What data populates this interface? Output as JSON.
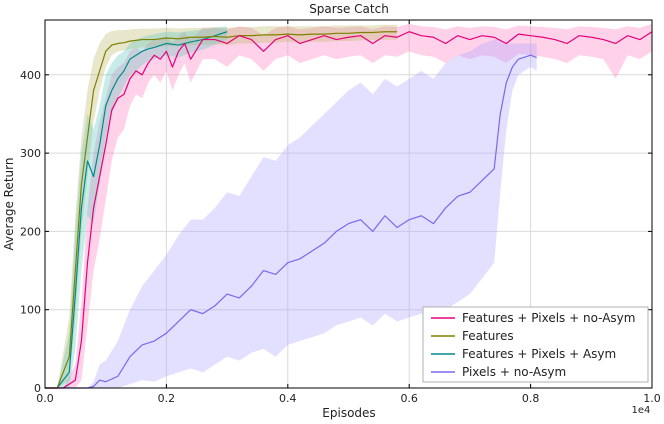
{
  "chart_data": {
    "type": "line",
    "title": "Sparse Catch",
    "xlabel": "Episodes",
    "ylabel": "Average Return",
    "x_multiplier_label": "1e4",
    "xlim": [
      0.0,
      1.0
    ],
    "ylim": [
      0,
      470
    ],
    "x_ticks": [
      0.0,
      0.2,
      0.4,
      0.6,
      0.8,
      1.0
    ],
    "x_tick_labels": [
      "0.0",
      "0.2",
      "0.4",
      "0.6",
      "0.8",
      "1.0"
    ],
    "y_ticks": [
      0,
      100,
      200,
      300,
      400
    ],
    "y_tick_labels": [
      "0",
      "100",
      "200",
      "300",
      "400"
    ],
    "grid": true,
    "legend_position": "lower-right",
    "series": [
      {
        "name": "Features + Pixels + no-Asym",
        "color": "#e6007a",
        "band_color": "#ff7fbf",
        "x": [
          0.0,
          0.03,
          0.05,
          0.06,
          0.07,
          0.08,
          0.09,
          0.1,
          0.11,
          0.12,
          0.13,
          0.14,
          0.15,
          0.16,
          0.17,
          0.18,
          0.19,
          0.2,
          0.21,
          0.22,
          0.23,
          0.24,
          0.26,
          0.28,
          0.3,
          0.32,
          0.34,
          0.36,
          0.38,
          0.4,
          0.42,
          0.44,
          0.46,
          0.48,
          0.5,
          0.52,
          0.54,
          0.56,
          0.58,
          0.6,
          0.62,
          0.64,
          0.66,
          0.68,
          0.7,
          0.72,
          0.74,
          0.76,
          0.78,
          0.8,
          0.82,
          0.84,
          0.86,
          0.88,
          0.9,
          0.92,
          0.94,
          0.96,
          0.98,
          1.0
        ],
        "y": [
          0,
          0,
          10,
          60,
          160,
          230,
          270,
          310,
          355,
          370,
          375,
          395,
          405,
          400,
          415,
          425,
          420,
          430,
          410,
          430,
          440,
          420,
          445,
          445,
          440,
          450,
          445,
          430,
          445,
          450,
          440,
          445,
          450,
          445,
          448,
          450,
          440,
          450,
          448,
          455,
          450,
          448,
          440,
          450,
          445,
          450,
          448,
          440,
          452,
          450,
          448,
          445,
          440,
          450,
          448,
          445,
          440,
          450,
          445,
          455
        ],
        "y_low": [
          0,
          0,
          0,
          10,
          80,
          150,
          190,
          240,
          290,
          320,
          330,
          360,
          375,
          370,
          390,
          400,
          390,
          405,
          380,
          400,
          415,
          390,
          420,
          420,
          410,
          425,
          420,
          405,
          420,
          425,
          415,
          420,
          425,
          420,
          423,
          425,
          415,
          425,
          423,
          430,
          425,
          423,
          415,
          425,
          420,
          425,
          423,
          415,
          427,
          425,
          423,
          420,
          415,
          425,
          423,
          420,
          395,
          425,
          420,
          430
        ],
        "y_high": [
          0,
          0,
          30,
          110,
          230,
          300,
          340,
          370,
          400,
          410,
          415,
          430,
          435,
          430,
          440,
          445,
          445,
          450,
          440,
          450,
          455,
          445,
          460,
          460,
          458,
          462,
          460,
          450,
          460,
          462,
          458,
          460,
          462,
          460,
          461,
          462,
          458,
          462,
          461,
          465,
          462,
          461,
          458,
          462,
          460,
          462,
          461,
          458,
          463,
          462,
          461,
          460,
          458,
          462,
          461,
          460,
          458,
          462,
          460,
          465
        ]
      },
      {
        "name": "Features",
        "color": "#808000",
        "band_color": "#bdb76b",
        "x": [
          0.0,
          0.02,
          0.04,
          0.05,
          0.06,
          0.07,
          0.08,
          0.09,
          0.1,
          0.11,
          0.12,
          0.13,
          0.14,
          0.16,
          0.18,
          0.2,
          0.22,
          0.24,
          0.26,
          0.28,
          0.3,
          0.32,
          0.34,
          0.36,
          0.38,
          0.4,
          0.42,
          0.44,
          0.46,
          0.48,
          0.5,
          0.52,
          0.54,
          0.56,
          0.58
        ],
        "y": [
          0,
          0,
          40,
          150,
          260,
          320,
          380,
          405,
          430,
          438,
          440,
          441,
          443,
          445,
          445,
          447,
          446,
          448,
          448,
          449,
          448,
          450,
          450,
          451,
          451,
          452,
          451,
          452,
          452,
          453,
          453,
          454,
          454,
          455,
          455
        ],
        "y_low": [
          0,
          0,
          10,
          90,
          200,
          270,
          340,
          380,
          410,
          425,
          430,
          431,
          433,
          435,
          435,
          437,
          436,
          438,
          438,
          439,
          438,
          440,
          440,
          441,
          441,
          442,
          441,
          442,
          442,
          443,
          443,
          444,
          444,
          445,
          445
        ],
        "y_high": [
          0,
          0,
          90,
          220,
          320,
          380,
          420,
          440,
          452,
          456,
          457,
          457,
          458,
          459,
          459,
          460,
          459,
          460,
          460,
          461,
          460,
          461,
          461,
          462,
          462,
          462,
          462,
          462,
          462,
          463,
          463,
          463,
          463,
          464,
          464
        ]
      },
      {
        "name": "Features + Pixels + Asym",
        "color": "#008b8b",
        "band_color": "#5fc9bf",
        "x": [
          0.0,
          0.02,
          0.04,
          0.05,
          0.06,
          0.07,
          0.08,
          0.09,
          0.1,
          0.11,
          0.12,
          0.13,
          0.14,
          0.15,
          0.16,
          0.17,
          0.18,
          0.2,
          0.22,
          0.24,
          0.26,
          0.28,
          0.3
        ],
        "y": [
          0,
          0,
          20,
          120,
          230,
          290,
          270,
          310,
          360,
          380,
          395,
          405,
          420,
          425,
          430,
          433,
          435,
          440,
          438,
          442,
          445,
          450,
          455
        ],
        "y_low": [
          0,
          0,
          0,
          50,
          150,
          220,
          210,
          260,
          320,
          350,
          370,
          385,
          400,
          405,
          412,
          418,
          420,
          425,
          422,
          428,
          432,
          438,
          445
        ],
        "y_high": [
          0,
          0,
          70,
          200,
          300,
          350,
          330,
          360,
          400,
          415,
          425,
          430,
          440,
          445,
          448,
          450,
          452,
          455,
          454,
          456,
          458,
          460,
          462
        ]
      },
      {
        "name": "Pixels + no-Asym",
        "color": "#7b68ee",
        "band_color": "#b0a2ff",
        "x": [
          0.0,
          0.05,
          0.07,
          0.08,
          0.09,
          0.1,
          0.12,
          0.14,
          0.16,
          0.18,
          0.2,
          0.22,
          0.24,
          0.26,
          0.28,
          0.3,
          0.32,
          0.34,
          0.36,
          0.38,
          0.4,
          0.42,
          0.44,
          0.46,
          0.48,
          0.5,
          0.52,
          0.54,
          0.56,
          0.58,
          0.6,
          0.62,
          0.64,
          0.66,
          0.68,
          0.7,
          0.72,
          0.74,
          0.75,
          0.76,
          0.77,
          0.78,
          0.8,
          0.81
        ],
        "y": [
          0,
          0,
          0,
          2,
          10,
          8,
          15,
          40,
          55,
          60,
          70,
          85,
          100,
          95,
          105,
          120,
          115,
          130,
          150,
          145,
          160,
          165,
          175,
          185,
          200,
          210,
          215,
          200,
          220,
          205,
          215,
          220,
          210,
          230,
          245,
          250,
          265,
          280,
          350,
          390,
          410,
          420,
          425,
          422
        ],
        "y_low": [
          0,
          0,
          0,
          0,
          0,
          0,
          0,
          5,
          10,
          8,
          15,
          20,
          25,
          20,
          30,
          40,
          35,
          45,
          50,
          40,
          55,
          60,
          65,
          70,
          80,
          85,
          90,
          80,
          95,
          85,
          90,
          95,
          85,
          100,
          110,
          120,
          140,
          160,
          250,
          330,
          380,
          400,
          410,
          405
        ],
        "y_high": [
          0,
          0,
          0,
          8,
          30,
          35,
          60,
          100,
          130,
          150,
          170,
          195,
          215,
          215,
          230,
          250,
          245,
          270,
          295,
          290,
          310,
          320,
          335,
          350,
          365,
          380,
          390,
          375,
          395,
          385,
          395,
          405,
          395,
          415,
          425,
          430,
          440,
          445,
          445,
          440,
          440,
          440,
          440,
          440
        ]
      }
    ]
  }
}
